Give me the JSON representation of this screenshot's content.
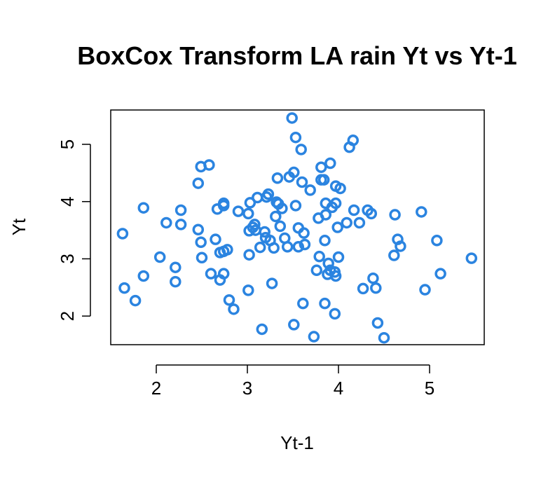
{
  "chart_data": {
    "type": "scatter",
    "title": "BoxCox Transform LA rain Yt vs Yt-1",
    "xlabel": "Yt-1",
    "ylabel": "Yt",
    "xlim": [
      1.5,
      5.6
    ],
    "ylim": [
      1.5,
      5.6
    ],
    "xticks": [
      2,
      3,
      4,
      5
    ],
    "yticks": [
      2,
      3,
      4,
      5
    ],
    "grid": false,
    "marker": "open-circle",
    "color": "#2b84e0",
    "points": [
      [
        1.63,
        3.44
      ],
      [
        1.65,
        2.49
      ],
      [
        1.77,
        2.27
      ],
      [
        1.86,
        3.89
      ],
      [
        1.86,
        2.7
      ],
      [
        2.04,
        3.03
      ],
      [
        2.11,
        3.63
      ],
      [
        2.21,
        2.85
      ],
      [
        2.21,
        2.6
      ],
      [
        2.27,
        3.85
      ],
      [
        2.27,
        3.6
      ],
      [
        2.46,
        4.32
      ],
      [
        2.46,
        3.51
      ],
      [
        2.49,
        4.61
      ],
      [
        2.49,
        3.29
      ],
      [
        2.5,
        3.02
      ],
      [
        2.58,
        4.64
      ],
      [
        2.6,
        2.74
      ],
      [
        2.65,
        3.34
      ],
      [
        2.67,
        3.87
      ],
      [
        2.7,
        3.11
      ],
      [
        2.7,
        2.63
      ],
      [
        2.74,
        3.97
      ],
      [
        2.74,
        3.93
      ],
      [
        2.74,
        3.13
      ],
      [
        2.74,
        2.74
      ],
      [
        2.78,
        3.16
      ],
      [
        2.8,
        2.28
      ],
      [
        2.85,
        2.12
      ],
      [
        2.9,
        3.83
      ],
      [
        3.01,
        3.79
      ],
      [
        3.01,
        2.45
      ],
      [
        3.02,
        3.49
      ],
      [
        3.02,
        3.07
      ],
      [
        3.03,
        3.98
      ],
      [
        3.06,
        3.55
      ],
      [
        3.08,
        3.6
      ],
      [
        3.09,
        3.5
      ],
      [
        3.11,
        4.07
      ],
      [
        3.14,
        3.2
      ],
      [
        3.16,
        1.77
      ],
      [
        3.19,
        3.47
      ],
      [
        3.2,
        3.37
      ],
      [
        3.21,
        4.08
      ],
      [
        3.23,
        4.13
      ],
      [
        3.25,
        3.32
      ],
      [
        3.27,
        2.57
      ],
      [
        3.29,
        3.19
      ],
      [
        3.31,
        3.74
      ],
      [
        3.32,
        3.99
      ],
      [
        3.33,
        4.41
      ],
      [
        3.34,
        3.96
      ],
      [
        3.36,
        3.57
      ],
      [
        3.38,
        3.88
      ],
      [
        3.41,
        3.36
      ],
      [
        3.44,
        3.21
      ],
      [
        3.46,
        4.43
      ],
      [
        3.49,
        5.46
      ],
      [
        3.51,
        4.51
      ],
      [
        3.51,
        1.85
      ],
      [
        3.53,
        5.12
      ],
      [
        3.53,
        3.93
      ],
      [
        3.56,
        3.54
      ],
      [
        3.56,
        3.21
      ],
      [
        3.59,
        4.91
      ],
      [
        3.6,
        4.34
      ],
      [
        3.61,
        2.22
      ],
      [
        3.62,
        3.45
      ],
      [
        3.63,
        3.25
      ],
      [
        3.69,
        4.2
      ],
      [
        3.73,
        1.64
      ],
      [
        3.76,
        2.8
      ],
      [
        3.78,
        3.71
      ],
      [
        3.79,
        3.04
      ],
      [
        3.81,
        4.38
      ],
      [
        3.81,
        4.6
      ],
      [
        3.84,
        4.38
      ],
      [
        3.85,
        3.32
      ],
      [
        3.85,
        2.22
      ],
      [
        3.86,
        3.97
      ],
      [
        3.86,
        3.77
      ],
      [
        3.88,
        2.73
      ],
      [
        3.89,
        2.92
      ],
      [
        3.91,
        4.67
      ],
      [
        3.91,
        2.8
      ],
      [
        3.93,
        3.9
      ],
      [
        3.96,
        2.77
      ],
      [
        3.96,
        2.04
      ],
      [
        3.97,
        3.97
      ],
      [
        3.97,
        2.7
      ],
      [
        3.97,
        4.27
      ],
      [
        3.99,
        3.55
      ],
      [
        4.0,
        3.03
      ],
      [
        4.02,
        4.23
      ],
      [
        4.09,
        3.63
      ],
      [
        4.12,
        4.95
      ],
      [
        4.16,
        5.07
      ],
      [
        4.17,
        3.85
      ],
      [
        4.23,
        3.63
      ],
      [
        4.27,
        2.48
      ],
      [
        4.32,
        3.85
      ],
      [
        4.36,
        3.79
      ],
      [
        4.38,
        2.66
      ],
      [
        4.41,
        2.49
      ],
      [
        4.43,
        1.88
      ],
      [
        4.5,
        1.62
      ],
      [
        4.61,
        3.06
      ],
      [
        4.62,
        3.77
      ],
      [
        4.65,
        3.34
      ],
      [
        4.68,
        3.22
      ],
      [
        4.91,
        3.82
      ],
      [
        4.95,
        2.46
      ],
      [
        5.08,
        3.32
      ],
      [
        5.12,
        2.74
      ],
      [
        5.46,
        3.01
      ]
    ]
  }
}
